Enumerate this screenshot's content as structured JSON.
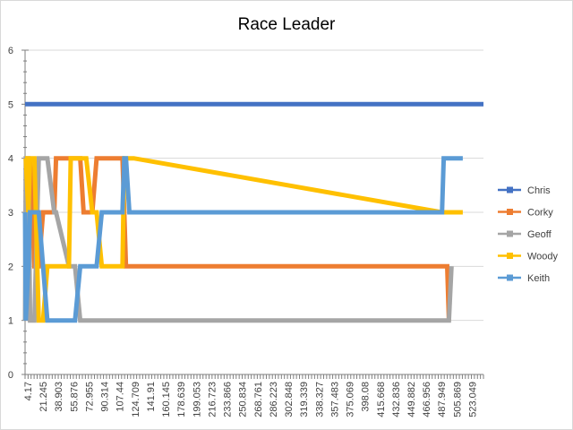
{
  "chart_data": {
    "type": "line",
    "title": "Race Leader",
    "xlabel": "",
    "ylabel": "",
    "ylim": [
      0,
      6
    ],
    "yticks": [
      0,
      1,
      2,
      3,
      4,
      5,
      6
    ],
    "grid": "horizontal",
    "legend_position": "right",
    "x_tick_labels": [
      "4.17",
      "21.245",
      "38.903",
      "55.876",
      "72.955",
      "90.314",
      "107.44",
      "124.709",
      "141.91",
      "160.145",
      "178.639",
      "199.053",
      "216.723",
      "233.866",
      "250.834",
      "268.761",
      "286.223",
      "302.848",
      "319.339",
      "338.327",
      "357.483",
      "375.069",
      "398.08",
      "415.668",
      "432.836",
      "449.882",
      "466.956",
      "487.949",
      "505.869",
      "523.049"
    ],
    "x": [
      4.17,
      5.0,
      8.0,
      10.0,
      15.0,
      20.0,
      25.0,
      30.0,
      38.0,
      40.0,
      55.0,
      57.0,
      62.0,
      68.0,
      72.0,
      75.0,
      82.0,
      87.0,
      93.0,
      105.0,
      117.0,
      119.0,
      121.0,
      125.0,
      130.0,
      487.0,
      489.0,
      491.0,
      493.0,
      495.0,
      498.0,
      505.0,
      511.0
    ],
    "series": [
      {
        "name": "Chris",
        "color": "#4472c4",
        "values": [
          5,
          5,
          5,
          5,
          5,
          5,
          5,
          5,
          5,
          5,
          5,
          5,
          5,
          5,
          5,
          5,
          5,
          5,
          5,
          5,
          5,
          5,
          5,
          5,
          5,
          5,
          5,
          5,
          5,
          5,
          5,
          5,
          5
        ]
      },
      {
        "name": "Corky",
        "color": "#ed7d31",
        "values": [
          2,
          2,
          1,
          4,
          2,
          2,
          3,
          3,
          3,
          4,
          4,
          4,
          4,
          4,
          3,
          3,
          3,
          4,
          4,
          4,
          4,
          3,
          2,
          2,
          2,
          2,
          2,
          2,
          2,
          1,
          null,
          null,
          null
        ]
      },
      {
        "name": "Geoff",
        "color": "#a5a5a5",
        "values": [
          1,
          4,
          4,
          1,
          1,
          4,
          4,
          4,
          3,
          3,
          2,
          2,
          2,
          1,
          1,
          1,
          1,
          1,
          1,
          1,
          1,
          1,
          1,
          1,
          1,
          1,
          1,
          1,
          1,
          1,
          2,
          null,
          null
        ]
      },
      {
        "name": "Woody",
        "color": "#ffc000",
        "values": [
          4,
          4,
          3,
          4,
          4,
          1,
          1,
          2,
          2,
          2,
          2,
          4,
          4,
          4,
          4,
          4,
          3,
          3,
          2,
          2,
          2,
          4,
          4,
          4,
          4,
          3,
          3,
          3,
          3,
          3,
          3,
          3,
          3
        ]
      },
      {
        "name": "Keith",
        "color": "#5b9bd5",
        "values": [
          3,
          1,
          2,
          3,
          3,
          3,
          2,
          1,
          1,
          1,
          1,
          1,
          1,
          2,
          2,
          2,
          2,
          2,
          3,
          3,
          3,
          4,
          4,
          3,
          3,
          3,
          4,
          4,
          4,
          4,
          4,
          4,
          4
        ]
      }
    ]
  }
}
